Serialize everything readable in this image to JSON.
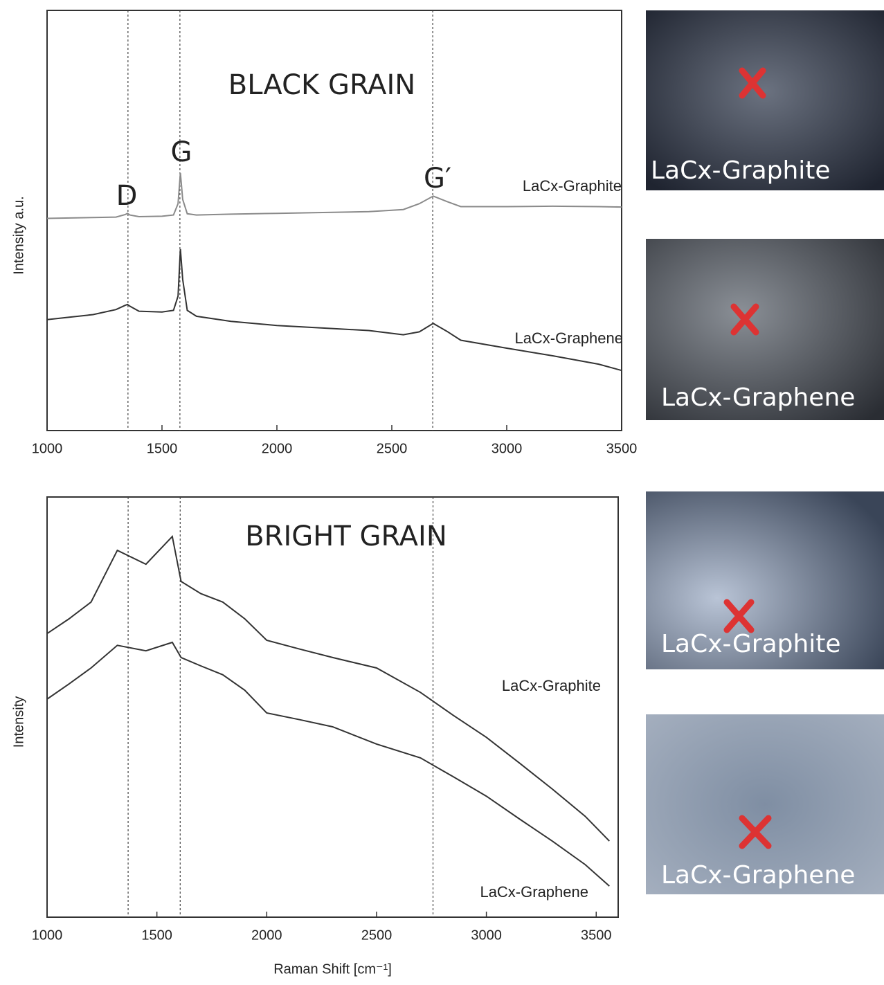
{
  "chart_data": [
    {
      "type": "line",
      "title": "BLACK GRAIN",
      "y_label": "Intensity a.u.",
      "x": [
        1000,
        1100,
        1200,
        1300,
        1340,
        1350,
        1360,
        1400,
        1500,
        1550,
        1570,
        1580,
        1590,
        1610,
        1650,
        1800,
        2000,
        2200,
        2400,
        2550,
        2620,
        2680,
        2740,
        2800,
        3000,
        3200,
        3400,
        3500
      ],
      "series": [
        {
          "name": "LaCx-Graphite",
          "color": "#8a8a8a",
          "values": [
            50.5,
            50.6,
            50.7,
            50.8,
            51.4,
            51.7,
            51.3,
            50.9,
            51.0,
            51.3,
            54,
            61.3,
            55,
            51.6,
            51.3,
            51.5,
            51.7,
            51.9,
            52.1,
            52.6,
            54.0,
            55.8,
            54.5,
            53.3,
            53.3,
            53.4,
            53.3,
            53.2
          ]
        },
        {
          "name": "LaCx-Graphene",
          "color": "#333333",
          "values": [
            26.4,
            27.0,
            27.6,
            28.8,
            29.8,
            30.0,
            29.6,
            28.4,
            28.2,
            28.6,
            32,
            43.2,
            36,
            28.6,
            27.2,
            26.0,
            25.0,
            24.4,
            23.8,
            22.8,
            23.5,
            25.5,
            23.6,
            21.5,
            19.6,
            17.8,
            15.8,
            14.3
          ]
        }
      ],
      "xlim": [
        1000,
        3500
      ],
      "xticks": [
        1000,
        1500,
        2000,
        2500,
        3000,
        3500
      ],
      "ylim": [
        0,
        100
      ],
      "vlines": [
        {
          "x": 1352,
          "label": "D"
        },
        {
          "x": 1578,
          "label": "G"
        },
        {
          "x": 2678,
          "label": "G′"
        }
      ]
    },
    {
      "type": "line",
      "title": "BRIGHT GRAIN",
      "x_label": "Raman Shift [cm⁻¹]",
      "y_label": "Intensity",
      "x": [
        1000,
        1100,
        1200,
        1320,
        1450,
        1570,
        1610,
        1700,
        1800,
        1900,
        2000,
        2150,
        2300,
        2500,
        2700,
        2850,
        3000,
        3150,
        3300,
        3450,
        3560
      ],
      "series": [
        {
          "name": "LaCx-Graphite",
          "color": "#333333",
          "values": [
            67.5,
            71,
            75,
            87.3,
            84,
            90.6,
            79.9,
            77,
            75,
            71,
            65.9,
            63.8,
            61.8,
            59.3,
            53.5,
            48,
            42.8,
            36.7,
            30.5,
            24,
            18.1
          ]
        },
        {
          "name": "LaCx-Graphene",
          "color": "#333333",
          "values": [
            51.9,
            55.5,
            59.3,
            64.7,
            63.4,
            65.4,
            61.8,
            59.8,
            57.7,
            54,
            48.6,
            47,
            45.3,
            41.2,
            37.9,
            33.4,
            28.8,
            23.4,
            18.1,
            12.5,
            7.4
          ]
        }
      ],
      "xlim": [
        1000,
        3600
      ],
      "xticks": [
        1000,
        1500,
        2000,
        2500,
        3000,
        3500
      ],
      "ylim": [
        0,
        100
      ],
      "vlines": [
        {
          "x": 1369
        },
        {
          "x": 1606
        },
        {
          "x": 2757
        }
      ]
    }
  ],
  "images": [
    {
      "label": "LaCx-Graphite"
    },
    {
      "label": "LaCx-Graphene"
    },
    {
      "label": "LaCx-Graphite"
    },
    {
      "label": "LaCx-Graphene"
    }
  ]
}
